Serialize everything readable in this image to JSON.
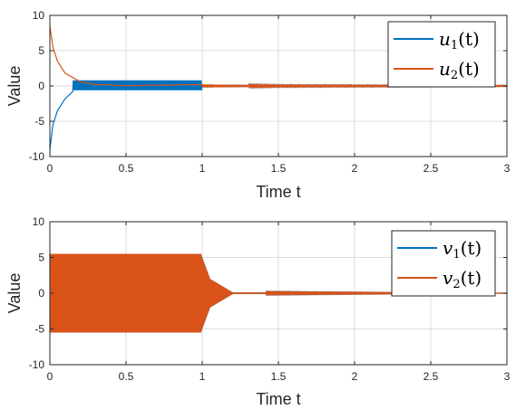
{
  "chart_data": [
    {
      "type": "line",
      "xlabel": "Time t",
      "ylabel": "Value",
      "xlim": [
        0,
        3
      ],
      "ylim": [
        -10,
        10
      ],
      "xticks": [
        "0",
        "0.5",
        "1",
        "1.5",
        "2",
        "2.5",
        "3"
      ],
      "yticks": [
        "10",
        "5",
        "0",
        "-5",
        "-10"
      ],
      "grid": true,
      "legend_position": "top-right",
      "series": [
        {
          "name": "u1(t)",
          "legend": {
            "base": "u",
            "sub": "1",
            "arg": "(t)"
          },
          "color": "#0072BD",
          "description_points": {
            "x": [
              0,
              0.02,
              0.05,
              0.1,
              0.15,
              0.16,
              0.5,
              0.99,
              1.0,
              1.5,
              3.0
            ],
            "y": [
              -9,
              -5.5,
              -3.5,
              -1.8,
              -0.8,
              0.8,
              0.8,
              0.8,
              0.2,
              0.1,
              0.05
            ]
          }
        },
        {
          "name": "u2(t)",
          "legend": {
            "base": "u",
            "sub": "2",
            "arg": "(t)"
          },
          "color": "#D95319",
          "description_points": {
            "x": [
              0,
              0.02,
              0.05,
              0.1,
              0.2,
              0.3,
              0.5,
              1.0,
              1.5,
              3.0
            ],
            "y": [
              8.5,
              5.5,
              3.5,
              1.8,
              0.6,
              0.2,
              0.05,
              0.2,
              0.1,
              0.05
            ]
          }
        }
      ]
    },
    {
      "type": "line",
      "xlabel": "Time t",
      "ylabel": "Value",
      "xlim": [
        0,
        3
      ],
      "ylim": [
        -10,
        10
      ],
      "xticks": [
        "0",
        "0.5",
        "1",
        "1.5",
        "2",
        "2.5",
        "3"
      ],
      "yticks": [
        "10",
        "5",
        "0",
        "-5",
        "-10"
      ],
      "grid": true,
      "legend_position": "top-right",
      "series": [
        {
          "name": "v1(t)",
          "legend": {
            "base": "v",
            "sub": "1",
            "arg": "(t)"
          },
          "color": "#0072BD",
          "amplitude_envelope": {
            "x": [
              0,
              0.99,
              1.05,
              1.2,
              3.0
            ],
            "amp": [
              5.5,
              5.5,
              2.0,
              0.1,
              0.0
            ]
          }
        },
        {
          "name": "v2(t)",
          "legend": {
            "base": "v",
            "sub": "2",
            "arg": "(t)"
          },
          "color": "#D95319",
          "amplitude_envelope": {
            "x": [
              0,
              0.99,
              1.05,
              1.2,
              3.0
            ],
            "amp": [
              5.5,
              5.5,
              2.0,
              0.1,
              0.0
            ]
          }
        }
      ]
    }
  ]
}
